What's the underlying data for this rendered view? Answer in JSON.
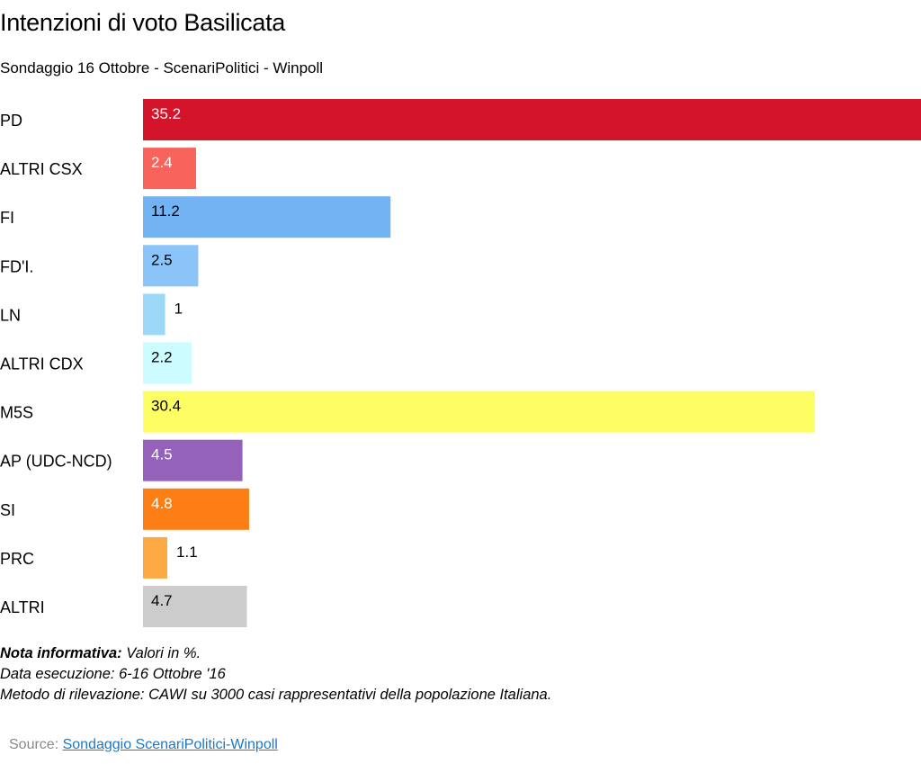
{
  "title": "Intenzioni di voto Basilicata",
  "subtitle": "Sondaggio 16 Ottobre - ScenariPolitici - Winpoll",
  "notes": {
    "label": "Nota informativa:",
    "values_text": " Valori in %.",
    "line2": "Data esecuzione: 6-16  Ottobre '16",
    "line3": "Metodo di rilevazione: CAWI su 3000 casi rappresentativi della popolazione Italiana."
  },
  "source": {
    "label": "Source: ",
    "link_text": "Sondaggio ScenariPolitici-Winpoll"
  },
  "chart_data": {
    "type": "bar",
    "orientation": "horizontal",
    "title": "Intenzioni di voto Basilicata",
    "subtitle": "Sondaggio 16 Ottobre - ScenariPolitici - Winpoll",
    "categories": [
      "PD",
      "ALTRI CSX",
      "FI",
      "FD'I.",
      "LN",
      "ALTRI CDX",
      "M5S",
      "AP (UDC-NCD)",
      "SI",
      "PRC",
      "ALTRI"
    ],
    "values": [
      35.2,
      2.4,
      11.2,
      2.5,
      1,
      2.2,
      30.4,
      4.5,
      4.8,
      1.1,
      4.7
    ],
    "value_labels": [
      "35.2",
      "2.4",
      "11.2",
      "2.5",
      "1",
      "2.2",
      "30.4",
      "4.5",
      "4.8",
      "1.1",
      "4.7"
    ],
    "colors": [
      "#d3142a",
      "#f8645c",
      "#72b3f4",
      "#8ac4f9",
      "#9cd9f9",
      "#ccfcff",
      "#fdfd64",
      "#9462bb",
      "#fd7e14",
      "#fda944",
      "#cccccc"
    ],
    "label_colors": [
      "#ffffff",
      "#ffffff",
      "#000000",
      "#000000",
      "#000000",
      "#000000",
      "#000000",
      "#ffffff",
      "#ffffff",
      "#000000",
      "#000000"
    ],
    "xlim": [
      0,
      35.2
    ],
    "grid": false,
    "legend": "none"
  }
}
